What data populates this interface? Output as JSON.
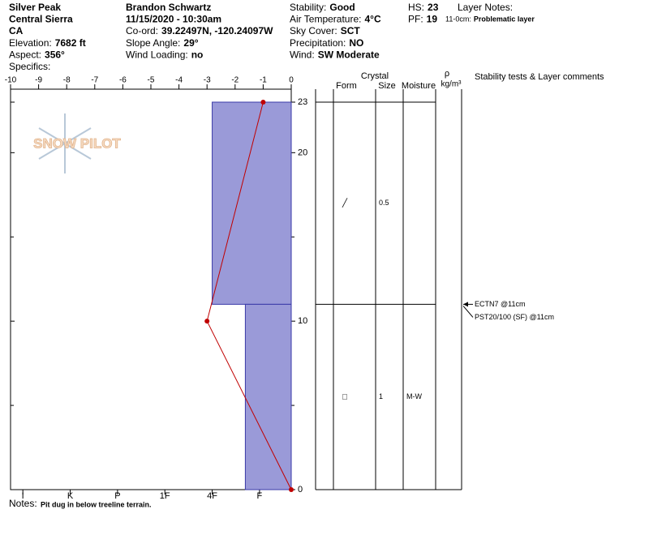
{
  "header": {
    "columns": [
      [
        {
          "value": "Silver Peak"
        },
        {
          "value": "Central Sierra"
        },
        {
          "value": "CA"
        },
        {
          "label": "Elevation:",
          "value": "7682 ft"
        },
        {
          "label": "Aspect:",
          "value": "356°"
        },
        {
          "label": "Specifics:"
        }
      ],
      [
        {
          "value": "Brandon Schwartz"
        },
        {
          "value": "11/15/2020 - 10:30am"
        },
        {
          "label": "Co-ord:",
          "value": "39.22497N, -120.24097W"
        },
        {
          "label": "Slope Angle:",
          "value": "29°"
        },
        {
          "label": "Wind Loading:",
          "value": "no"
        }
      ],
      [
        {
          "label": "Stability:",
          "value": "Good"
        },
        {
          "label": "Air Temperature:",
          "value": "4°C"
        },
        {
          "label": "Sky Cover:",
          "value": "SCT"
        },
        {
          "label": "Precipitation:",
          "value": "NO"
        },
        {
          "label": "Wind:",
          "value": "SW Moderate"
        }
      ],
      [
        {
          "label": "HS:",
          "value": 23
        },
        {
          "label": "PF:",
          "value": 19
        }
      ],
      [
        {
          "label": "Layer Notes:"
        },
        {
          "label": "11-0cm:",
          "value": "Problematic layer"
        }
      ]
    ]
  },
  "logo": "SNOW PILOT",
  "notes": {
    "label": "Notes:",
    "value": "Pit dug in below treeline terrain."
  },
  "table_headers": {
    "crystal": "Crystal",
    "form": "Form",
    "size": "Size",
    "moisture": "Moisture",
    "rho": "ρ",
    "density_unit": "kg/m³",
    "comments": "Stability tests & Layer comments"
  },
  "chart_data": {
    "type": "snow-profile",
    "xlim": [
      -10,
      0
    ],
    "xticks": [
      -10,
      -9,
      -8,
      -7,
      -6,
      -5,
      -4,
      -3,
      -2,
      -1,
      0
    ],
    "ylim": [
      0,
      23
    ],
    "yticks": [
      0,
      10,
      20,
      23
    ],
    "yminor_ticks": [
      5,
      15
    ],
    "hardness_xlim": [
      6.26,
      0.33
    ],
    "hardness_ticks": [
      {
        "value": 6,
        "label": "I"
      },
      {
        "value": 5,
        "label": "K"
      },
      {
        "value": 4,
        "label": "P"
      },
      {
        "value": 3,
        "label": "1F"
      },
      {
        "value": 2,
        "label": "4F"
      },
      {
        "value": 1,
        "label": "F"
      }
    ],
    "layers": {
      "top": [
        23,
        11
      ],
      "bottom": [
        11,
        0
      ],
      "hardness": [
        2.0,
        1.3
      ],
      "form": [
        "╱",
        "□"
      ],
      "size": [
        0.5,
        1
      ],
      "moisture": [
        null,
        "M-W"
      ],
      "color": "#9a9ad8"
    },
    "temperature": {
      "depth": [
        23,
        10,
        0
      ],
      "values": [
        -1,
        -3,
        0
      ],
      "color": "#c00000"
    },
    "tests": {
      "depth": 11,
      "labels": [
        "ECTN7 @11cm",
        "PST20/100 (SF) @11cm"
      ]
    }
  }
}
